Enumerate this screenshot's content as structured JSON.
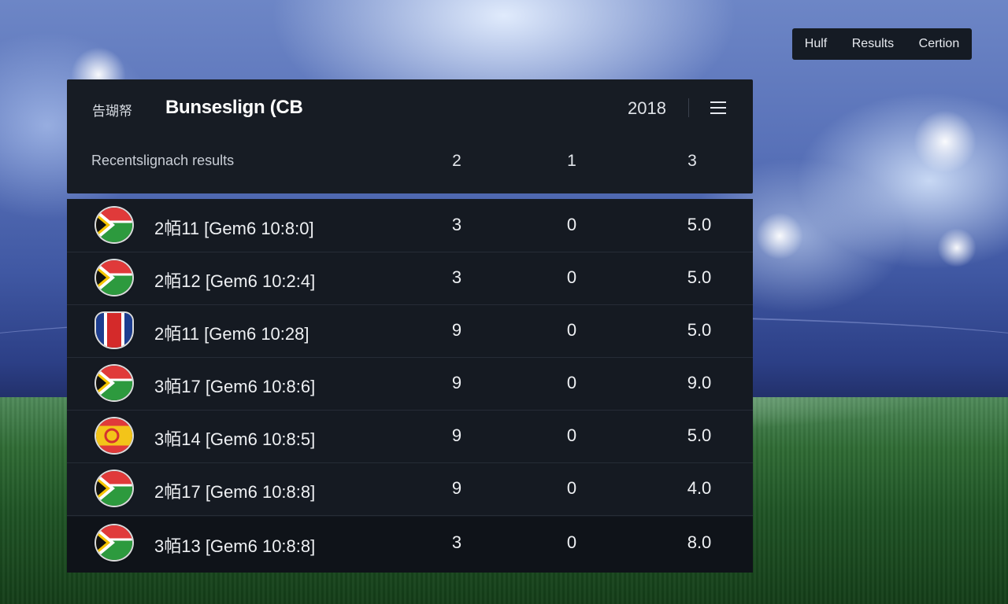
{
  "topnav": [
    "Hulf",
    "Results",
    "Certion"
  ],
  "header": {
    "brand_text": "告瑚帑",
    "title": "Bunseslign (CB",
    "year": "2018",
    "subtitle": "Recentslignach results",
    "columns": [
      "2",
      "1",
      "3"
    ]
  },
  "rows": [
    {
      "flag": "south-africa-flag",
      "match": "2帞11  [Gem6 10:8:0]",
      "c1": "3",
      "c2": "0",
      "c3": "5.0"
    },
    {
      "flag": "south-africa-flag",
      "match": "2帞12  [Gem6 10:2:4]",
      "c1": "3",
      "c2": "0",
      "c3": "5.0"
    },
    {
      "flag": "striped-shield-flag",
      "match": "2帞11  [Gem6 10:28]",
      "c1": "9",
      "c2": "0",
      "c3": "5.0"
    },
    {
      "flag": "south-africa-flag",
      "match": "3帞17  [Gem6 10:8:6]",
      "c1": "9",
      "c2": "0",
      "c3": "9.0"
    },
    {
      "flag": "red-yellow-flag",
      "match": "3帞14  [Gem6 10:8:5]",
      "c1": "9",
      "c2": "0",
      "c3": "5.0"
    },
    {
      "flag": "south-africa-flag",
      "match": "2帞17  [Gem6 10:8:8]",
      "c1": "9",
      "c2": "0",
      "c3": "4.0"
    },
    {
      "flag": "south-africa-flag",
      "match": "3帞13  [Gem6 10:8:8]",
      "c1": "3",
      "c2": "0",
      "c3": "8.0"
    }
  ],
  "colors": {
    "panel": "#171c24",
    "row_bg": "#151a22",
    "text": "#eef0f3",
    "accent_green": "#2d9a3e",
    "accent_red": "#e03a3a"
  }
}
